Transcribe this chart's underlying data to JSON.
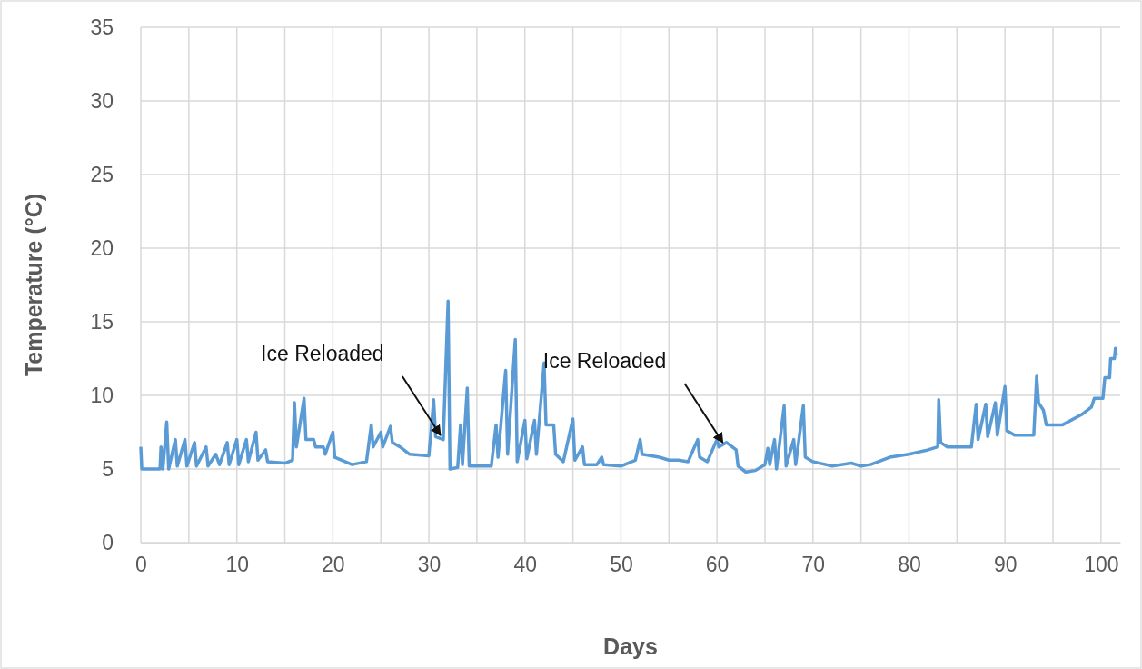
{
  "chart_data": {
    "type": "line",
    "xlabel": "Days",
    "ylabel": "Temperature (°C)",
    "xlim": [
      0,
      102
    ],
    "ylim": [
      0,
      35
    ],
    "xticks": [
      0,
      {
        "value": 5,
        "label": null
      },
      10,
      {
        "value": 15,
        "label": null
      },
      20,
      {
        "value": 25,
        "label": null
      },
      30,
      {
        "value": 35,
        "label": null
      },
      40,
      {
        "value": 45,
        "label": null
      },
      50,
      {
        "value": 55,
        "label": null
      },
      60,
      {
        "value": 65,
        "label": null
      },
      70,
      {
        "value": 75,
        "label": null
      },
      80,
      {
        "value": 85,
        "label": null
      },
      90,
      {
        "value": 95,
        "label": null
      },
      100
    ],
    "yticks": [
      0,
      5,
      10,
      15,
      20,
      25,
      30,
      35
    ],
    "grid": true,
    "marker": "none",
    "line_style": "solid",
    "annotations": [
      {
        "text": "Ice Reloaded",
        "x": 31.4,
        "y": 7.1
      },
      {
        "text": "Ice Reloaded",
        "x": 60.8,
        "y": 6.6
      }
    ],
    "series": [
      {
        "color": "#5b9bd5",
        "x": [
          0,
          0.1,
          2,
          2.1,
          2.3,
          2.7,
          2.9,
          3.6,
          3.8,
          4.6,
          4.8,
          5.6,
          5.8,
          6.8,
          7,
          7.8,
          8.2,
          9,
          9.2,
          10,
          10.2,
          11,
          11.2,
          12,
          12.2,
          13,
          13.2,
          15,
          15.8,
          16,
          16.2,
          17,
          17.2,
          18,
          18.2,
          19,
          19.2,
          20,
          20.2,
          22,
          23.5,
          24,
          24.2,
          25,
          25.2,
          26,
          26.2,
          27,
          28,
          30,
          30.5,
          30.7,
          31.5,
          32,
          32.2,
          33,
          33.3,
          33.5,
          34,
          34.2,
          36.5,
          37,
          37.2,
          38,
          38.2,
          39,
          39.2,
          40,
          40.2,
          41,
          41.2,
          42,
          42.2,
          43,
          43.2,
          44,
          45,
          45.2,
          46,
          46.2,
          47.5,
          48,
          48.2,
          50,
          51.5,
          52,
          52.2,
          54,
          55,
          56,
          57,
          58,
          58.2,
          59,
          60,
          60.2,
          61,
          62,
          62.2,
          63,
          64,
          65,
          65.3,
          65.5,
          66,
          66.2,
          67,
          67.2,
          68,
          68.2,
          69,
          69.2,
          70,
          72,
          74,
          75,
          76,
          78,
          80,
          82,
          83,
          83.1,
          83.3,
          84,
          86.5,
          87,
          87.2,
          88,
          88.2,
          89,
          89.2,
          90,
          90.2,
          91,
          93,
          93.3,
          93.5,
          94,
          94.3,
          96,
          98,
          99,
          99.3,
          100.2,
          100.4,
          100.9,
          101,
          101.4,
          101.5,
          101.6
        ],
        "values": [
          6.5,
          5.0,
          5.0,
          6.5,
          5.0,
          8.2,
          5.0,
          7.0,
          5.2,
          7.0,
          5.2,
          6.8,
          5.2,
          6.5,
          5.2,
          6.0,
          5.3,
          6.8,
          5.3,
          7.0,
          5.3,
          7.0,
          5.5,
          7.5,
          5.6,
          6.3,
          5.5,
          5.4,
          5.6,
          9.5,
          6.5,
          9.8,
          7.0,
          7.0,
          6.5,
          6.5,
          6.0,
          7.5,
          5.8,
          5.3,
          5.5,
          8.0,
          6.5,
          7.5,
          6.5,
          7.9,
          6.8,
          6.5,
          6.0,
          5.9,
          9.7,
          7.2,
          7.0,
          16.4,
          5.0,
          5.1,
          8.0,
          5.3,
          10.5,
          5.2,
          5.2,
          8.0,
          5.8,
          11.7,
          6.0,
          13.8,
          5.5,
          8.3,
          5.7,
          8.3,
          6.0,
          12.2,
          8.0,
          8.0,
          6.0,
          5.5,
          8.4,
          5.6,
          6.5,
          5.3,
          5.3,
          5.8,
          5.3,
          5.2,
          5.6,
          7.0,
          6.0,
          5.8,
          5.6,
          5.6,
          5.5,
          7.0,
          5.8,
          5.5,
          7.0,
          6.5,
          6.8,
          6.3,
          5.2,
          4.8,
          4.9,
          5.3,
          6.4,
          5.3,
          7.0,
          5.0,
          9.3,
          5.2,
          7.0,
          5.3,
          9.3,
          5.8,
          5.5,
          5.2,
          5.4,
          5.2,
          5.3,
          5.8,
          6.0,
          6.3,
          6.5,
          9.7,
          6.8,
          6.5,
          6.5,
          9.4,
          7.0,
          9.4,
          7.2,
          9.5,
          7.3,
          10.6,
          7.6,
          7.3,
          7.3,
          11.3,
          9.5,
          9.0,
          8.0,
          8.0,
          8.7,
          9.2,
          9.8,
          9.8,
          11.2,
          11.2,
          12.5,
          12.5,
          13.2,
          12.7
        ]
      }
    ]
  }
}
